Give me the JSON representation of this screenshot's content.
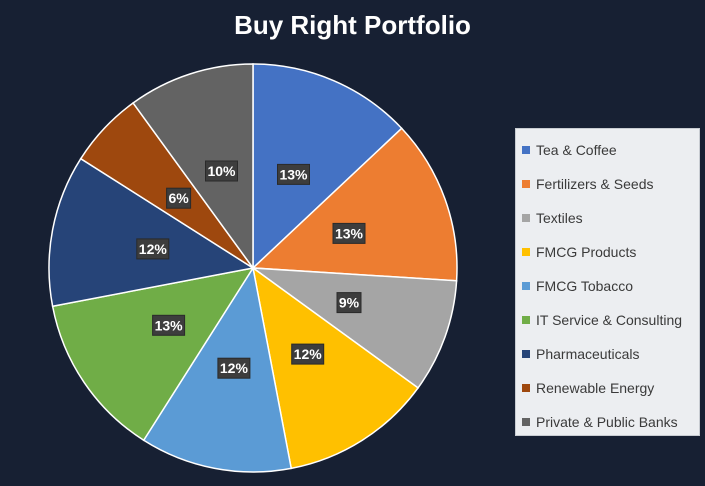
{
  "chart_data": {
    "type": "pie",
    "title": "Buy Right Portfolio",
    "categories": [
      "Tea & Coffee",
      "Fertilizers & Seeds",
      "Textiles",
      "FMCG Products",
      "FMCG Tobacco",
      "IT Service & Consulting",
      "Pharmaceuticals",
      "Renewable Energy",
      "Private & Public Banks"
    ],
    "values": [
      13,
      13,
      9,
      12,
      12,
      13,
      12,
      6,
      10
    ],
    "labels": [
      "13%",
      "13%",
      "9%",
      "12%",
      "12%",
      "13%",
      "12%",
      "6%",
      "10%"
    ],
    "colors": [
      "#4472c4",
      "#ed7d31",
      "#a5a5a5",
      "#ffc000",
      "#5b9bd5",
      "#70ad47",
      "#264478",
      "#9e480e",
      "#636363"
    ],
    "legend": "right"
  }
}
